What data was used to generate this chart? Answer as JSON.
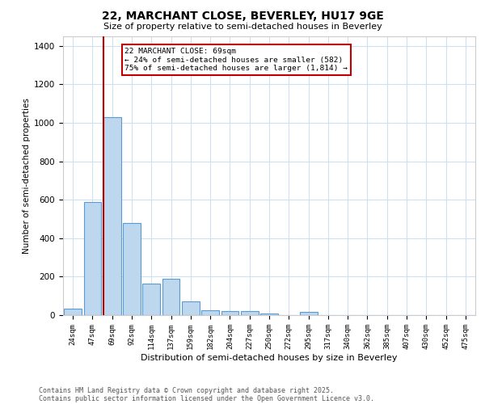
{
  "title_line1": "22, MARCHANT CLOSE, BEVERLEY, HU17 9GE",
  "title_line2": "Size of property relative to semi-detached houses in Beverley",
  "xlabel": "Distribution of semi-detached houses by size in Beverley",
  "ylabel": "Number of semi-detached properties",
  "categories": [
    "24sqm",
    "47sqm",
    "69sqm",
    "92sqm",
    "114sqm",
    "137sqm",
    "159sqm",
    "182sqm",
    "204sqm",
    "227sqm",
    "250sqm",
    "272sqm",
    "295sqm",
    "317sqm",
    "340sqm",
    "362sqm",
    "385sqm",
    "407sqm",
    "430sqm",
    "452sqm",
    "475sqm"
  ],
  "values": [
    35,
    590,
    1030,
    480,
    165,
    190,
    70,
    25,
    20,
    20,
    10,
    0,
    15,
    0,
    0,
    0,
    0,
    0,
    0,
    0,
    0
  ],
  "bar_color": "#bdd7ee",
  "bar_edge_color": "#5b9bd5",
  "highlight_index": 2,
  "highlight_line_color": "#c00000",
  "annotation_text": "22 MARCHANT CLOSE: 69sqm\n← 24% of semi-detached houses are smaller (582)\n75% of semi-detached houses are larger (1,814) →",
  "annotation_box_color": "#ffffff",
  "annotation_box_edge": "#c00000",
  "ylim": [
    0,
    1450
  ],
  "yticks": [
    0,
    200,
    400,
    600,
    800,
    1000,
    1200,
    1400
  ],
  "background_color": "#ffffff",
  "grid_color": "#d0e0f0",
  "footnote_line1": "Contains HM Land Registry data © Crown copyright and database right 2025.",
  "footnote_line2": "Contains public sector information licensed under the Open Government Licence v3.0."
}
